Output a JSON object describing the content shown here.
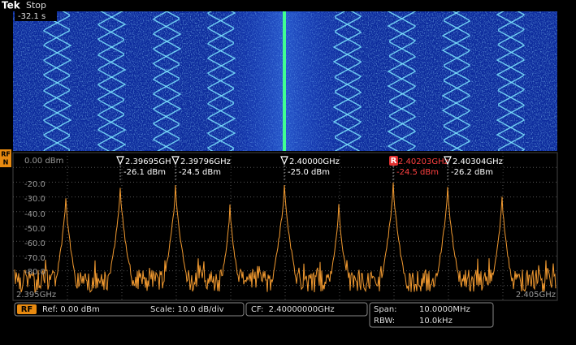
{
  "header": {
    "brand": "Tek",
    "status": "Stop"
  },
  "spectrogram": {
    "time": "-32.1 s"
  },
  "spectrum": {
    "channel_badge": [
      "RF",
      "N"
    ],
    "y_labels": [
      "0.00 dBm",
      "-20.0",
      "-30.0",
      "-40.0",
      "-50.0",
      "-60.0",
      "-70.0",
      "-80.0"
    ],
    "x_start": "2.395GHz",
    "x_end": "2.405GHz",
    "reference_marker": "R",
    "markers": [
      {
        "freq": "2.39695GH",
        "level": "-26.1 dBm"
      },
      {
        "freq": "2.39796GHz",
        "level": "-24.5 dBm"
      },
      {
        "freq": "2.40000GHz",
        "level": "-25.0 dBm"
      },
      {
        "freq": "2.40203GHz",
        "level": "-24.5 dBm"
      },
      {
        "freq": "2.40304GHz",
        "level": "-26.2 dBm"
      }
    ]
  },
  "status_bar": {
    "rf_badge": "RF",
    "ref": "Ref: 0.00 dBm",
    "scale": "Scale: 10.0 dB/div",
    "cf": "CF:  2.40000000GHz",
    "span_label": "Span:",
    "span": "10.0000MHz",
    "rbw_label": "RBW:",
    "rbw": "10.0kHz"
  }
}
